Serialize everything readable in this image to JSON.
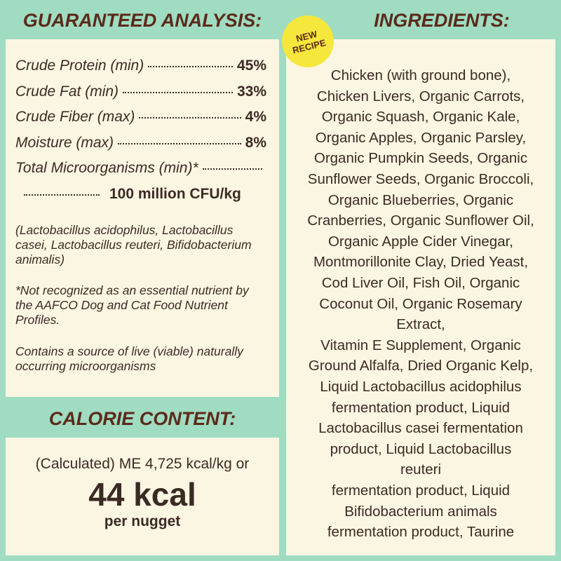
{
  "analysis": {
    "title": "GUARANTEED ANALYSIS:",
    "rows": [
      {
        "label": "Crude Protein (min)",
        "value": "45%"
      },
      {
        "label": "Crude Fat (min)",
        "value": "33%"
      },
      {
        "label": "Crude Fiber (max)",
        "value": "4%"
      },
      {
        "label": "Moisture (max)",
        "value": "8%"
      }
    ],
    "microorganisms": {
      "label": "Total Microorganisms (min)*",
      "value": "100 million CFU/kg"
    },
    "notes": [
      "(Lactobacillus acidophilus, Lactobacillus casei, Lactobacillus reuteri, Bifidobacterium animalis)",
      "*Not recognized as an essential nutrient by the AAFCO Dog and Cat Food Nutrient Profiles.",
      "Contains a source of live (viable) naturally occurring microorganisms"
    ]
  },
  "calorie": {
    "title": "CALORIE CONTENT:",
    "line": "(Calculated) ME 4,725 kcal/kg or",
    "big": "44 kcal",
    "sub": "per nugget"
  },
  "ingredients": {
    "title": "INGREDIENTS:",
    "badge": [
      "NEW",
      "RECIPE"
    ],
    "lines": [
      "Chicken (with ground bone),",
      "Chicken Livers, Organic Carrots,",
      "Organic Squash, Organic Kale,",
      "Organic Apples, Organic Parsley,",
      "Organic Pumpkin Seeds, Organic",
      "Sunflower Seeds, Organic Broccoli,",
      "Organic Blueberries, Organic",
      "Cranberries, Organic Sunflower Oil,",
      "Organic Apple Cider Vinegar,",
      "Montmorillonite Clay, Dried Yeast,",
      "Cod Liver Oil, Fish Oil, Organic",
      "Coconut Oil, Organic Rosemary",
      "Extract,",
      "Vitamin E Supplement, Organic",
      "Ground Alfalfa, Dried Organic Kelp,",
      "Liquid Lactobacillus acidophilus",
      "fermentation product, Liquid",
      "Lactobacillus casei fermentation",
      "product, Liquid Lactobacillus",
      "reuteri",
      "fermentation product, Liquid",
      "Bifidobacterium animals",
      "fermentation product, Taurine"
    ]
  }
}
